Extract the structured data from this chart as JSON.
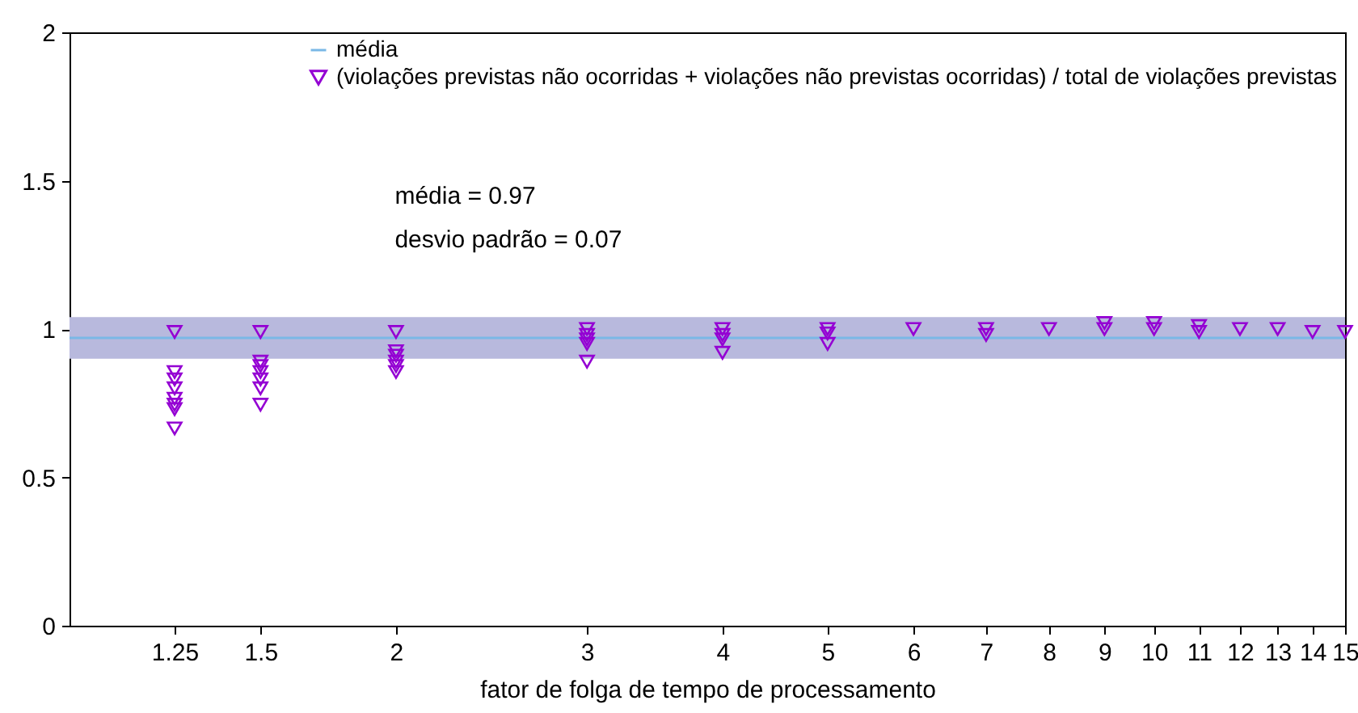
{
  "chart_data": {
    "type": "scatter",
    "xlabel": "fator de folga de tempo de processamento",
    "log": "x",
    "xlim": [
      1,
      15
    ],
    "xticks": [
      1.25,
      1.5,
      2,
      3,
      4,
      5,
      6,
      7,
      8,
      9,
      10,
      11,
      12,
      13,
      14,
      15
    ],
    "ylim": [
      0,
      2
    ],
    "yticks": [
      0,
      0.5,
      1,
      1.5,
      2
    ],
    "grid": false,
    "legend": "top right",
    "annotations": [
      "média = 0.97",
      "desvio padrão = 0.07"
    ],
    "bands": [
      {
        "axis": "y",
        "from": 0.9,
        "to": 1.04,
        "color": "#b8b9dd"
      }
    ],
    "series": [
      {
        "name": "média",
        "type": "line",
        "color": "#7ab8e6",
        "x": [
          1,
          15
        ],
        "values": [
          0.97,
          0.97
        ]
      },
      {
        "name": "(violações previstas não ocorridas + violações não previstas ocorridas) / total de violações previstas",
        "marker": "triangle",
        "color": "#9400d3",
        "x": [
          1.25,
          1.25,
          1.25,
          1.25,
          1.25,
          1.25,
          1.25,
          1.25,
          1.5,
          1.5,
          1.5,
          1.5,
          1.5,
          1.5,
          1.5,
          2,
          2,
          2,
          2,
          2,
          2,
          3,
          3,
          3,
          3,
          3,
          4,
          4,
          4,
          4,
          5,
          5,
          5,
          6,
          7,
          7,
          8,
          9,
          9,
          10,
          10,
          11,
          11,
          12,
          13,
          14,
          15
        ],
        "values": [
          0.99,
          0.855,
          0.83,
          0.8,
          0.765,
          0.745,
          0.73,
          0.665,
          0.99,
          0.89,
          0.875,
          0.855,
          0.83,
          0.8,
          0.745,
          0.99,
          0.925,
          0.91,
          0.89,
          0.875,
          0.855,
          1.0,
          0.98,
          0.965,
          0.95,
          0.89,
          1.0,
          0.98,
          0.965,
          0.92,
          1.0,
          0.985,
          0.95,
          1.0,
          1.0,
          0.98,
          1.0,
          1.02,
          1.0,
          1.02,
          1.0,
          1.01,
          0.99,
          1.0,
          1.0,
          0.99,
          0.99
        ]
      }
    ]
  }
}
